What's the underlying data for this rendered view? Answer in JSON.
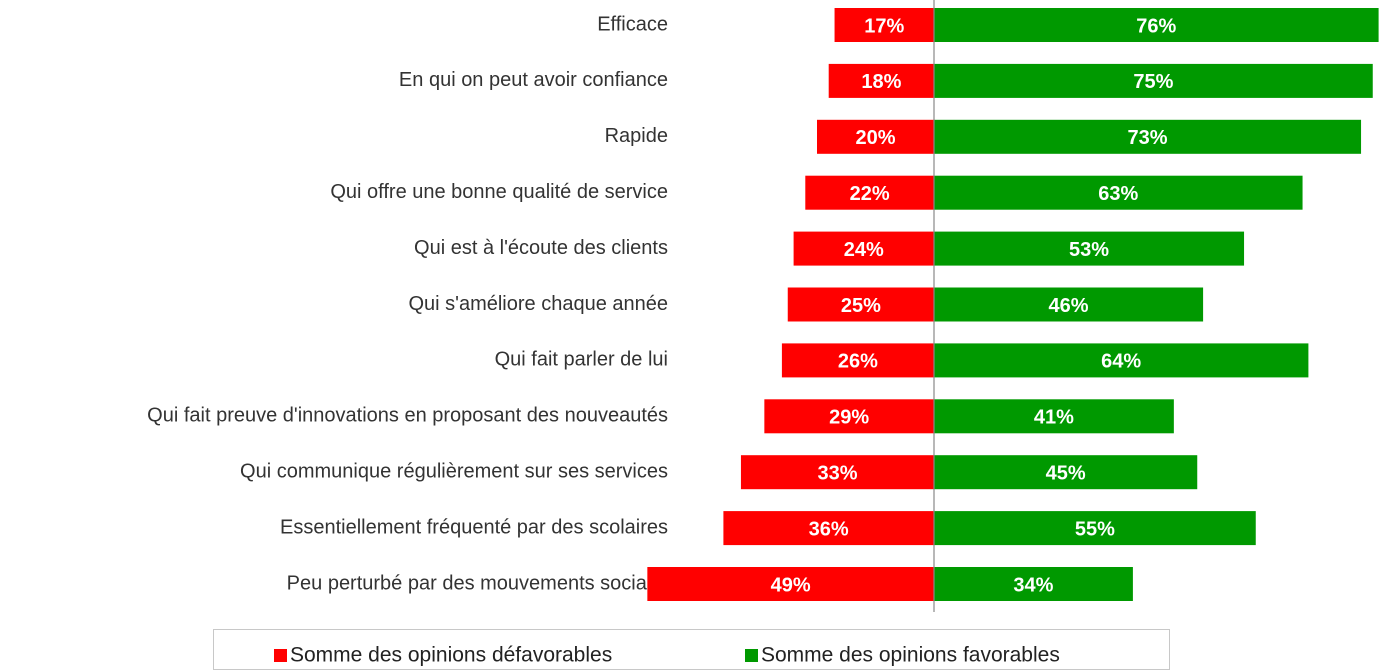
{
  "chart_data": {
    "type": "bar",
    "orientation": "horizontal",
    "stacking": "diverging",
    "categories": [
      "Efficace",
      "En qui on peut avoir confiance",
      "Rapide",
      "Qui offre une bonne qualité de service",
      "Qui est à l'écoute des clients",
      "Qui s'améliore chaque année",
      "Qui fait parler de lui",
      "Qui fait preuve d'innovations en proposant des nouveautés",
      "Qui communique régulièrement sur ses services",
      "Essentiellement fréquenté par des scolaires",
      "Peu perturbé par des mouvements sociaux"
    ],
    "series": [
      {
        "name": "Somme des opinions défavorables",
        "color": "#ff0000",
        "values": [
          17,
          18,
          20,
          22,
          24,
          25,
          26,
          29,
          33,
          36,
          49
        ],
        "value_labels": [
          "17%",
          "18%",
          "20%",
          "22%",
          "24%",
          "25%",
          "26%",
          "29%",
          "33%",
          "36%",
          "49%"
        ]
      },
      {
        "name": "Somme des opinions favorables",
        "color": "#009900",
        "values": [
          76,
          75,
          73,
          63,
          53,
          46,
          64,
          41,
          45,
          55,
          34
        ],
        "value_labels": [
          "76%",
          "75%",
          "73%",
          "63%",
          "53%",
          "46%",
          "64%",
          "41%",
          "45%",
          "55%",
          "34%"
        ]
      }
    ],
    "legend": "bottom"
  }
}
